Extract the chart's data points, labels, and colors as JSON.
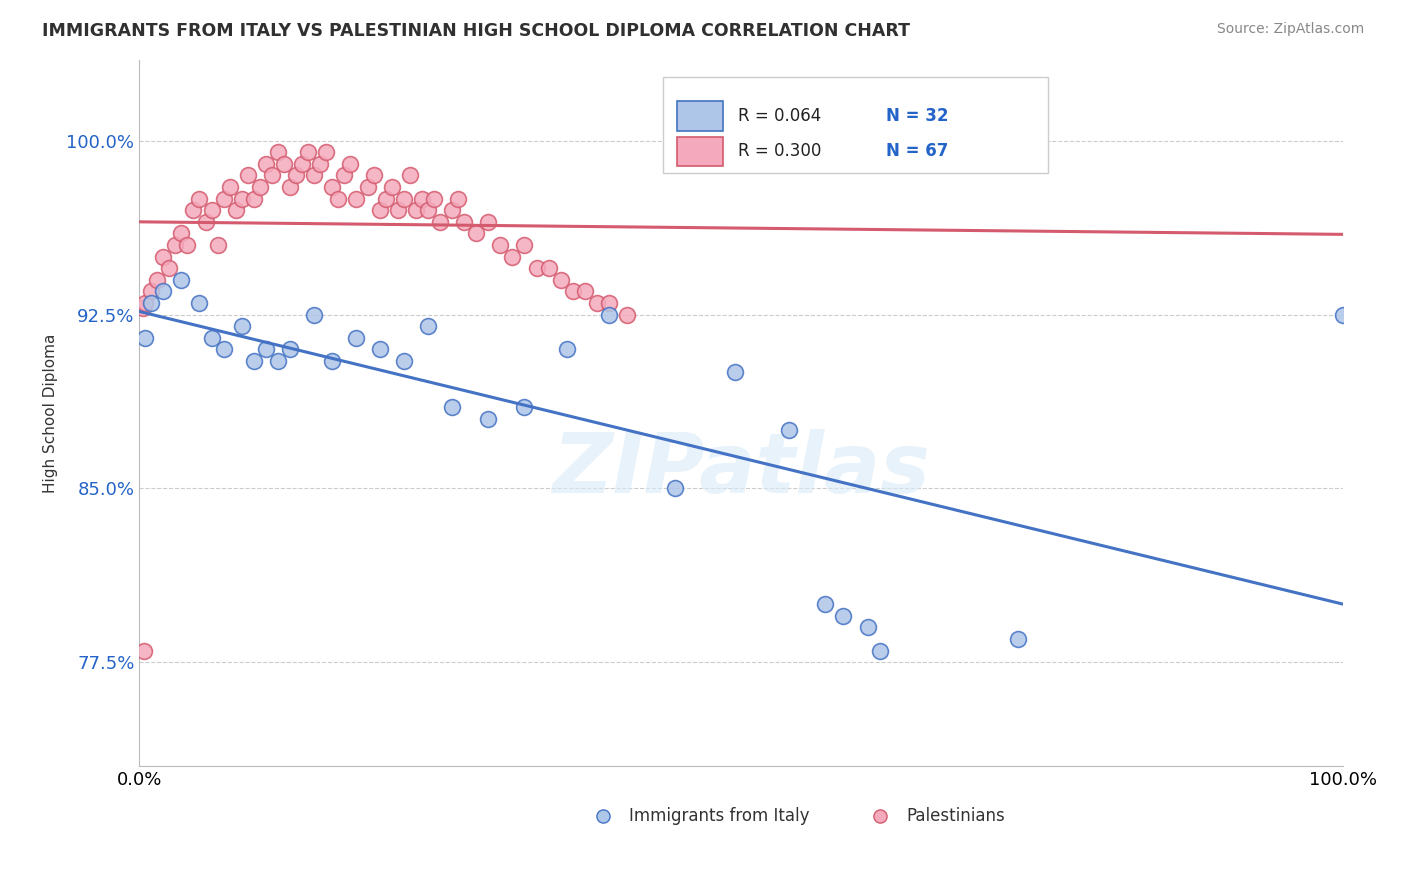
{
  "title": "IMMIGRANTS FROM ITALY VS PALESTINIAN HIGH SCHOOL DIPLOMA CORRELATION CHART",
  "source": "Source: ZipAtlas.com",
  "ylabel": "High School Diploma",
  "legend_italy_R": "R = 0.064",
  "legend_italy_N": "N = 32",
  "legend_pal_R": "R = 0.300",
  "legend_pal_N": "N = 67",
  "legend_italy_label": "Immigrants from Italy",
  "legend_pal_label": "Palestinians",
  "color_italy": "#aec6e8",
  "color_pal": "#f4aabc",
  "color_italy_line": "#4472c4",
  "color_pal_line": "#d45a6e",
  "accent_color": "#2464c8",
  "italy_x": [
    0.5,
    1.0,
    2.0,
    3.5,
    5.0,
    6.0,
    7.0,
    8.5,
    9.5,
    10.5,
    11.5,
    12.5,
    14.5,
    16.0,
    18.0,
    20.0,
    22.0,
    24.0,
    26.0,
    29.0,
    32.0,
    35.5,
    39.0,
    44.5,
    49.5,
    54.0,
    57.0,
    58.5,
    60.5,
    61.5,
    73.0,
    100.0
  ],
  "italy_y": [
    91.5,
    93.0,
    93.5,
    94.0,
    93.0,
    91.5,
    91.0,
    92.0,
    90.5,
    91.0,
    90.5,
    91.0,
    92.5,
    90.5,
    91.5,
    91.0,
    90.5,
    92.0,
    88.5,
    88.0,
    88.5,
    91.0,
    92.5,
    85.0,
    90.0,
    87.5,
    80.0,
    79.5,
    79.0,
    78.0,
    78.5,
    92.5
  ],
  "pal_x": [
    0.3,
    0.5,
    1.0,
    1.5,
    2.0,
    2.5,
    3.0,
    3.5,
    4.0,
    4.5,
    5.0,
    5.5,
    6.0,
    6.5,
    7.0,
    7.5,
    8.0,
    8.5,
    9.0,
    9.5,
    10.0,
    10.5,
    11.0,
    11.5,
    12.0,
    12.5,
    13.0,
    13.5,
    14.0,
    14.5,
    15.0,
    15.5,
    16.0,
    16.5,
    17.0,
    17.5,
    18.0,
    19.0,
    19.5,
    20.0,
    20.5,
    21.0,
    21.5,
    22.0,
    22.5,
    23.0,
    23.5,
    24.0,
    24.5,
    25.0,
    26.0,
    26.5,
    27.0,
    28.0,
    29.0,
    30.0,
    31.0,
    32.0,
    33.0,
    34.0,
    35.0,
    36.0,
    37.0,
    38.0,
    39.0,
    40.5,
    0.4
  ],
  "pal_y": [
    92.8,
    93.0,
    93.5,
    94.0,
    95.0,
    94.5,
    95.5,
    96.0,
    95.5,
    97.0,
    97.5,
    96.5,
    97.0,
    95.5,
    97.5,
    98.0,
    97.0,
    97.5,
    98.5,
    97.5,
    98.0,
    99.0,
    98.5,
    99.5,
    99.0,
    98.0,
    98.5,
    99.0,
    99.5,
    98.5,
    99.0,
    99.5,
    98.0,
    97.5,
    98.5,
    99.0,
    97.5,
    98.0,
    98.5,
    97.0,
    97.5,
    98.0,
    97.0,
    97.5,
    98.5,
    97.0,
    97.5,
    97.0,
    97.5,
    96.5,
    97.0,
    97.5,
    96.5,
    96.0,
    96.5,
    95.5,
    95.0,
    95.5,
    94.5,
    94.5,
    94.0,
    93.5,
    93.5,
    93.0,
    93.0,
    92.5,
    78.0
  ],
  "xlim": [
    0.0,
    100.0
  ],
  "ylim": [
    73.0,
    103.5
  ],
  "yticks": [
    77.5,
    85.0,
    92.5,
    100.0
  ],
  "watermark": "ZIPatlas"
}
